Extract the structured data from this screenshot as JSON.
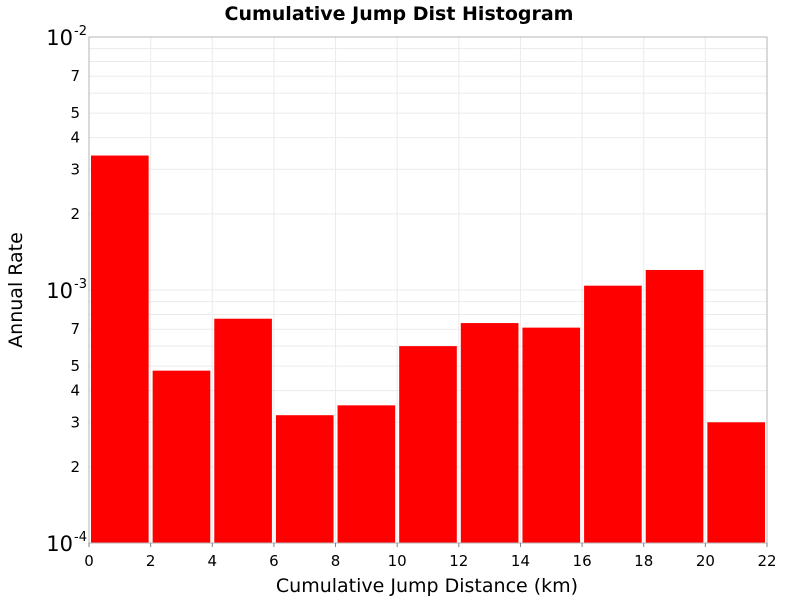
{
  "chart_data": {
    "type": "bar",
    "title": "Cumulative Jump Dist Histogram",
    "xlabel": "Cumulative Jump Distance (km)",
    "ylabel": "Annual Rate",
    "y_scale": "log",
    "xlim": [
      0,
      22
    ],
    "ylim": [
      0.0001,
      0.01
    ],
    "x_ticks": [
      "0",
      "2",
      "4",
      "6",
      "8",
      "10",
      "12",
      "14",
      "16",
      "18",
      "20",
      "22"
    ],
    "y_decade_ticks": [
      {
        "base": "10",
        "exp": "-4"
      },
      {
        "base": "10",
        "exp": "-3"
      },
      {
        "base": "10",
        "exp": "-2"
      }
    ],
    "y_minor_tick_labels": [
      "2",
      "3",
      "4",
      "5",
      "7"
    ],
    "grid": true,
    "bar_color": "#ff0000",
    "bins": [
      {
        "x_start": 0,
        "x_end": 2,
        "value": 0.0034
      },
      {
        "x_start": 2,
        "x_end": 4,
        "value": 0.00048
      },
      {
        "x_start": 4,
        "x_end": 6,
        "value": 0.00077
      },
      {
        "x_start": 6,
        "x_end": 8,
        "value": 0.00032
      },
      {
        "x_start": 8,
        "x_end": 10,
        "value": 0.00035
      },
      {
        "x_start": 10,
        "x_end": 12,
        "value": 0.0006
      },
      {
        "x_start": 12,
        "x_end": 14,
        "value": 0.00074
      },
      {
        "x_start": 14,
        "x_end": 16,
        "value": 0.00071
      },
      {
        "x_start": 16,
        "x_end": 18,
        "value": 0.00104
      },
      {
        "x_start": 18,
        "x_end": 20,
        "value": 0.0012
      },
      {
        "x_start": 20,
        "x_end": 22,
        "value": 0.0003
      }
    ]
  }
}
